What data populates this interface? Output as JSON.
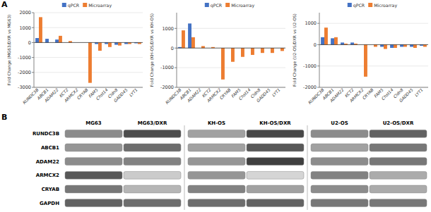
{
  "chart_data": [
    {
      "type": "bar",
      "annotations": [
        "A"
      ],
      "ylabel": "Fold Change (MG63/DXR vs MG63)",
      "categories": [
        "RUNDC3B",
        "ABCB1",
        "ADAM22",
        "KCT2",
        "ARMCX2",
        "CRYAB",
        "FAM5",
        "Chst14",
        "Cldn8",
        "GADD45",
        "LYT1"
      ],
      "series": [
        {
          "name": "qPCR",
          "color": "#4472C4",
          "values": [
            300,
            250,
            200,
            0,
            0,
            0,
            -100,
            -100,
            -150,
            -100,
            -50
          ]
        },
        {
          "name": "Microarray",
          "color": "#ED7D31",
          "values": [
            1700,
            0,
            450,
            100,
            0,
            -2700,
            -550,
            -300,
            -200,
            -100,
            -100
          ]
        }
      ],
      "ylim": [
        -3000,
        2000
      ],
      "yticks": [
        -3000,
        -2000,
        -1000,
        0,
        1000,
        2000
      ],
      "grid": true,
      "legend": "top"
    },
    {
      "type": "bar",
      "ylabel": "Fold Change (KH-OS/DXR vs KH-OS)",
      "categories": [
        "RUNDC3B",
        "ABCB1",
        "ADAM22",
        "KCT2",
        "ARMCX2",
        "CRYAB",
        "FAM5",
        "Chst14",
        "Cldn8",
        "GADD45",
        "LYT1"
      ],
      "series": [
        {
          "name": "qPCR",
          "color": "#4472C4",
          "values": [
            50,
            1250,
            0,
            0,
            0,
            0,
            0,
            0,
            0,
            0,
            0
          ]
        },
        {
          "name": "Microarray",
          "color": "#ED7D31",
          "values": [
            900,
            550,
            100,
            50,
            -1600,
            -700,
            -450,
            -350,
            -250,
            -250,
            -150
          ]
        }
      ],
      "ylim": [
        -2000,
        1800
      ],
      "yticks": [
        -2000,
        -1000,
        0,
        1000
      ],
      "grid": true,
      "legend": "top"
    },
    {
      "type": "bar",
      "ylabel": "Fold Change (U2-OS/DXR vs U2-OS)",
      "categories": [
        "RUNDC3B",
        "ABCB1",
        "ADAM22",
        "KCT2",
        "ARMCX2",
        "CRYAB",
        "FAM5",
        "Chst14",
        "Cldn8",
        "GADD45",
        "LYT1"
      ],
      "series": [
        {
          "name": "qPCR",
          "color": "#4472C4",
          "values": [
            350,
            300,
            100,
            100,
            0,
            0,
            -100,
            -150,
            -100,
            -100,
            -50
          ]
        },
        {
          "name": "Microarray",
          "color": "#ED7D31",
          "values": [
            800,
            350,
            50,
            50,
            -1500,
            -100,
            -200,
            -150,
            -100,
            -150,
            -100
          ]
        }
      ],
      "ylim": [
        -2000,
        1500
      ],
      "yticks": [
        -2000,
        -1000,
        0,
        1000
      ],
      "grid": true,
      "legend": "top"
    },
    {
      "type": "heatmap",
      "annotations": [
        "B"
      ],
      "x": [
        "MG63",
        "MG63/DXR",
        "KH-OS",
        "KH-OS/DXR",
        "U2-OS",
        "U2-OS/DXR"
      ],
      "y": [
        "RUNDC3B",
        "ABCB1",
        "ADAM22",
        "ARMCX2",
        "CRYAB",
        "GAPDH"
      ],
      "values": [
        [
          0.55,
          0.85,
          0.45,
          0.88,
          0.55,
          0.75
        ],
        [
          0.5,
          0.7,
          0.45,
          0.8,
          0.45,
          0.65
        ],
        [
          0.55,
          0.6,
          0.5,
          0.92,
          0.55,
          0.65
        ],
        [
          0.8,
          0.25,
          0.5,
          0.2,
          0.6,
          0.4
        ],
        [
          0.65,
          0.35,
          0.6,
          0.45,
          0.55,
          0.4
        ],
        [
          0.75,
          0.7,
          0.7,
          0.75,
          0.65,
          0.65
        ]
      ]
    }
  ]
}
